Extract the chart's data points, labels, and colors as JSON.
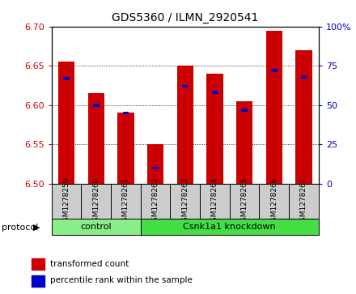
{
  "title": "GDS5360 / ILMN_2920541",
  "samples": [
    "GSM1278259",
    "GSM1278260",
    "GSM1278261",
    "GSM1278262",
    "GSM1278263",
    "GSM1278264",
    "GSM1278265",
    "GSM1278266",
    "GSM1278267"
  ],
  "transformed_counts": [
    6.655,
    6.615,
    6.59,
    6.55,
    6.65,
    6.64,
    6.605,
    6.695,
    6.67
  ],
  "percentile_ranks": [
    67,
    50,
    45,
    10,
    62,
    58,
    47,
    72,
    68
  ],
  "y_min": 6.5,
  "y_max": 6.7,
  "y_ticks": [
    6.5,
    6.55,
    6.6,
    6.65,
    6.7
  ],
  "right_y_ticks": [
    0,
    25,
    50,
    75,
    100
  ],
  "bar_color": "#cc0000",
  "percentile_color": "#0000cc",
  "groups": [
    {
      "label": "control",
      "start": 0,
      "end": 3,
      "color": "#88ee88"
    },
    {
      "label": "Csnk1a1 knockdown",
      "start": 3,
      "end": 9,
      "color": "#44dd44"
    }
  ],
  "protocol_label": "protocol",
  "legend_items": [
    {
      "label": "transformed count",
      "color": "#cc0000"
    },
    {
      "label": "percentile rank within the sample",
      "color": "#0000cc"
    }
  ]
}
